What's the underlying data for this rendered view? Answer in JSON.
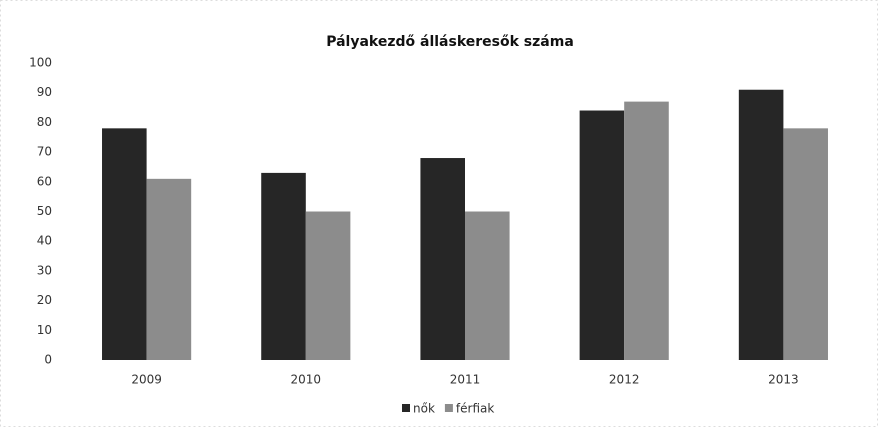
{
  "chart_data": {
    "type": "bar",
    "title": "Pályakezdő álláskeresők száma",
    "categories": [
      "2009",
      "2010",
      "2011",
      "2012",
      "2013"
    ],
    "series": [
      {
        "name": "nők",
        "color": "#262626",
        "values": [
          78,
          63,
          68,
          84,
          91
        ]
      },
      {
        "name": "férfiak",
        "color": "#8c8c8c",
        "values": [
          61,
          50,
          50,
          87,
          78
        ]
      }
    ],
    "ylim": [
      0,
      100
    ],
    "yticks": [
      0,
      10,
      20,
      30,
      40,
      50,
      60,
      70,
      80,
      90,
      100
    ],
    "grid": false,
    "legend": "bottom"
  }
}
